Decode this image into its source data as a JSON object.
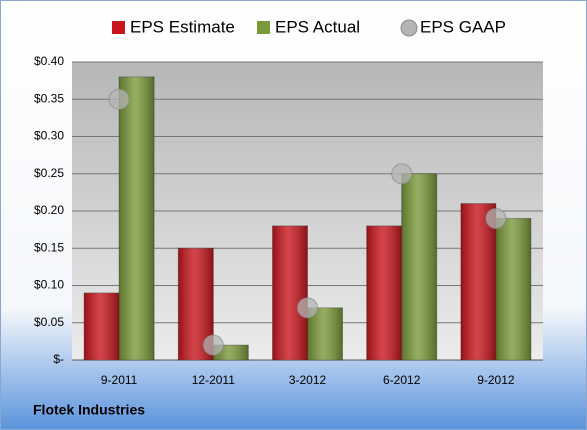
{
  "chart_data": {
    "type": "bar",
    "categories": [
      "9-2011",
      "12-2011",
      "3-2012",
      "6-2012",
      "9-2012"
    ],
    "series": [
      {
        "name": "EPS Estimate",
        "type": "bar",
        "color": "#c8161d",
        "values": [
          0.09,
          0.15,
          0.18,
          0.18,
          0.21
        ]
      },
      {
        "name": "EPS Actual",
        "type": "bar",
        "color": "#7a9a3a",
        "values": [
          0.38,
          0.02,
          0.07,
          0.25,
          0.19
        ]
      },
      {
        "name": "EPS GAAP",
        "type": "scatter",
        "color": "#b4b4b4",
        "values": [
          0.35,
          0.02,
          0.07,
          0.25,
          0.19
        ]
      }
    ],
    "ylim": [
      0,
      0.4
    ],
    "yticks": [
      {
        "value": 0,
        "label": "$-"
      },
      {
        "value": 0.05,
        "label": "$0.05"
      },
      {
        "value": 0.1,
        "label": "$0.10"
      },
      {
        "value": 0.15,
        "label": "$0.15"
      },
      {
        "value": 0.2,
        "label": "$0.20"
      },
      {
        "value": 0.25,
        "label": "$0.25"
      },
      {
        "value": 0.3,
        "label": "$0.30"
      },
      {
        "value": 0.35,
        "label": "$0.35"
      },
      {
        "value": 0.4,
        "label": "$0.40"
      }
    ],
    "grid": true,
    "legend": "top",
    "source": "Flotek Industries"
  }
}
